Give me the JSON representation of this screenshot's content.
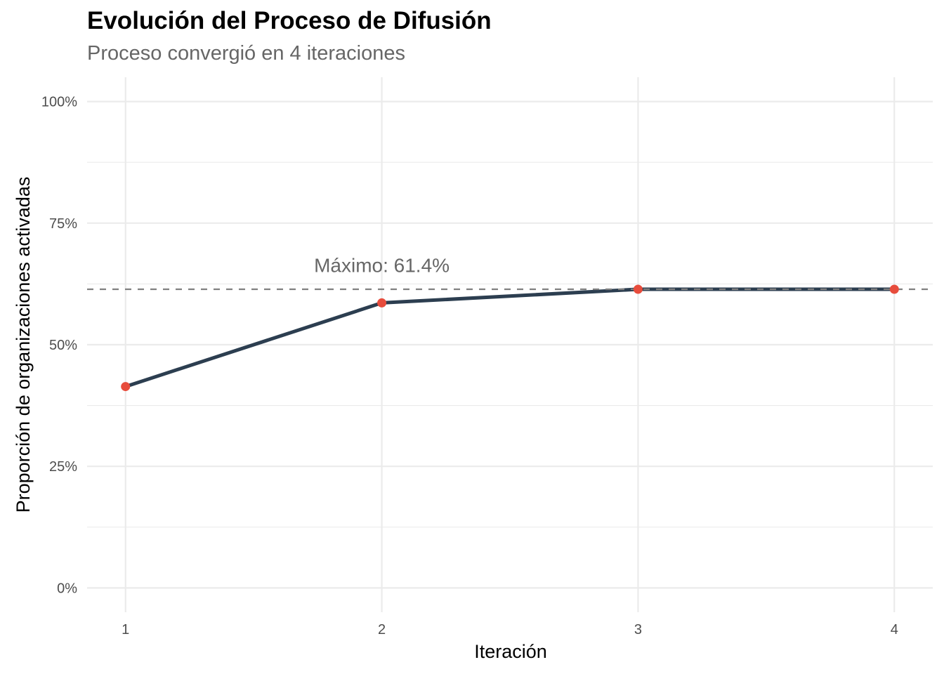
{
  "chart_data": {
    "type": "line",
    "title": "Evolución del Proceso de Difusión",
    "subtitle": "Proceso convergió en 4 iteraciones",
    "xlabel": "Iteración",
    "ylabel": "Proporción de organizaciones activadas",
    "x": [
      1,
      2,
      3,
      4
    ],
    "series": [
      {
        "values": [
          0.414,
          0.586,
          0.614,
          0.614
        ]
      }
    ],
    "xlim": [
      0.85,
      4.15
    ],
    "ylim": [
      -0.05,
      1.05
    ],
    "x_ticks": [
      {
        "value": 1,
        "label": "1"
      },
      {
        "value": 2,
        "label": "2"
      },
      {
        "value": 3,
        "label": "3"
      },
      {
        "value": 4,
        "label": "4"
      }
    ],
    "y_ticks": [
      {
        "value": 0,
        "label": "0%"
      },
      {
        "value": 0.25,
        "label": "25%"
      },
      {
        "value": 0.5,
        "label": "50%"
      },
      {
        "value": 0.75,
        "label": "75%"
      },
      {
        "value": 1.0,
        "label": "100%"
      }
    ],
    "y_minor_ticks": [
      0.125,
      0.375,
      0.625,
      0.875
    ],
    "reference_line": {
      "value": 0.614,
      "style": "dashed",
      "color": "#808080"
    },
    "annotation": {
      "text": "Máximo: 61.4%",
      "x": 2.0,
      "y": 0.664
    },
    "grid": true,
    "legend": "none",
    "colors": {
      "line": "#2c3e50",
      "points": "#e74c3c",
      "grid": "#ebebeb",
      "reference": "#808080"
    }
  }
}
